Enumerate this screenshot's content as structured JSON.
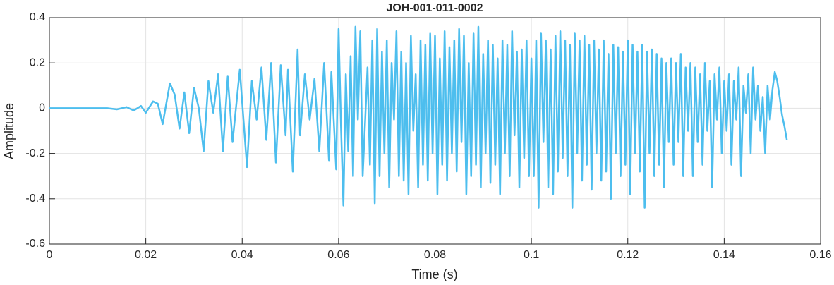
{
  "chart_data": {
    "type": "line",
    "title": "JOH-001-011-0002",
    "x_label": "Time (s)",
    "y_label": "Amplitude",
    "color": "#4dbeee",
    "grid": true,
    "xlim": [
      0,
      0.16
    ],
    "xticks": [
      0,
      0.02,
      0.04,
      0.06,
      0.08,
      0.1,
      0.12,
      0.14,
      0.16
    ],
    "ylim": [
      -0.6,
      0.4
    ],
    "yticks": [
      -0.6,
      -0.4,
      -0.2,
      0,
      0.2,
      0.4
    ],
    "x": [
      0,
      0.01,
      0.012,
      0.014,
      0.016,
      0.0175,
      0.019,
      0.02,
      0.0215,
      0.0225,
      0.0235,
      0.025,
      0.026,
      0.027,
      0.028,
      0.029,
      0.03,
      0.031,
      0.032,
      0.033,
      0.034,
      0.035,
      0.036,
      0.037,
      0.038,
      0.0395,
      0.041,
      0.042,
      0.043,
      0.044,
      0.045,
      0.046,
      0.047,
      0.048,
      0.049,
      0.0495,
      0.0505,
      0.0515,
      0.052,
      0.053,
      0.054,
      0.055,
      0.056,
      0.057,
      0.058,
      0.0585,
      0.0595,
      0.06,
      0.0605,
      0.061,
      0.0615,
      0.062,
      0.0625,
      0.063,
      0.0635,
      0.064,
      0.0645,
      0.065,
      0.066,
      0.0665,
      0.067,
      0.0675,
      0.068,
      0.0685,
      0.069,
      0.0695,
      0.07,
      0.0705,
      0.071,
      0.0715,
      0.072,
      0.0725,
      0.073,
      0.0735,
      0.074,
      0.0745,
      0.075,
      0.0755,
      0.076,
      0.0765,
      0.077,
      0.0775,
      0.078,
      0.0785,
      0.079,
      0.0795,
      0.08,
      0.0805,
      0.081,
      0.0815,
      0.082,
      0.0825,
      0.083,
      0.0835,
      0.084,
      0.0845,
      0.085,
      0.0855,
      0.086,
      0.0865,
      0.087,
      0.0875,
      0.088,
      0.0885,
      0.089,
      0.0895,
      0.09,
      0.0905,
      0.091,
      0.0915,
      0.092,
      0.0925,
      0.093,
      0.0935,
      0.094,
      0.0945,
      0.095,
      0.0955,
      0.096,
      0.0965,
      0.097,
      0.0975,
      0.098,
      0.0985,
      0.099,
      0.0995,
      0.1,
      0.1005,
      0.101,
      0.1015,
      0.102,
      0.1025,
      0.103,
      0.1035,
      0.104,
      0.1045,
      0.105,
      0.1055,
      0.106,
      0.1065,
      0.107,
      0.1075,
      0.108,
      0.1085,
      0.109,
      0.1095,
      0.11,
      0.1105,
      0.111,
      0.1115,
      0.112,
      0.1125,
      0.113,
      0.1135,
      0.114,
      0.1145,
      0.115,
      0.1155,
      0.116,
      0.1165,
      0.117,
      0.1175,
      0.118,
      0.1185,
      0.119,
      0.1195,
      0.12,
      0.1205,
      0.121,
      0.1215,
      0.122,
      0.1225,
      0.123,
      0.1235,
      0.124,
      0.1245,
      0.125,
      0.1255,
      0.126,
      0.1265,
      0.127,
      0.1275,
      0.128,
      0.1285,
      0.129,
      0.1295,
      0.13,
      0.1305,
      0.131,
      0.1315,
      0.132,
      0.1325,
      0.133,
      0.1335,
      0.134,
      0.1345,
      0.135,
      0.1355,
      0.136,
      0.1365,
      0.137,
      0.1375,
      0.138,
      0.1385,
      0.139,
      0.1395,
      0.14,
      0.1405,
      0.141,
      0.1415,
      0.142,
      0.1425,
      0.143,
      0.1435,
      0.144,
      0.1445,
      0.145,
      0.1455,
      0.146,
      0.1465,
      0.147,
      0.1475,
      0.148,
      0.1485,
      0.149,
      0.1495,
      0.15,
      0.1505,
      0.151,
      0.1515,
      0.152,
      0.1525,
      0.153
    ],
    "values": [
      0,
      0,
      0,
      -0.005,
      0.005,
      -0.01,
      0.01,
      -0.02,
      0.03,
      0.02,
      -0.07,
      0.11,
      0.06,
      -0.09,
      0.07,
      -0.11,
      0.09,
      0,
      -0.19,
      0.12,
      -0.02,
      0.15,
      -0.19,
      0.14,
      -0.15,
      0.17,
      -0.26,
      0.12,
      -0.05,
      0.18,
      -0.14,
      0.2,
      -0.24,
      0.19,
      -0.12,
      0.17,
      -0.28,
      0.26,
      -0.12,
      0.15,
      -0.05,
      0.13,
      -0.19,
      0.2,
      -0.23,
      0.16,
      -0.27,
      0.35,
      -0.08,
      -0.43,
      0.15,
      -0.19,
      0.23,
      -0.3,
      0.36,
      -0.05,
      0.34,
      -0.3,
      0.18,
      -0.25,
      0.3,
      -0.42,
      0.35,
      -0.3,
      0.25,
      -0.2,
      0.3,
      -0.35,
      0.2,
      -0.05,
      0.34,
      -0.3,
      0.25,
      -0.32,
      0.2,
      -0.38,
      0.32,
      -0.1,
      0.15,
      -0.35,
      0.3,
      -0.25,
      0.28,
      -0.32,
      0.33,
      -0.2,
      0.32,
      -0.38,
      0.22,
      -0.25,
      0.34,
      -0.32,
      0.27,
      -0.2,
      0.3,
      -0.28,
      0.35,
      -0.15,
      0.32,
      -0.38,
      0.2,
      -0.3,
      0.33,
      -0.25,
      0.36,
      -0.35,
      0.24,
      -0.2,
      0.3,
      -0.33,
      0.28,
      -0.25,
      0.22,
      -0.38,
      0.3,
      -0.2,
      0.28,
      -0.3,
      0.34,
      -0.12,
      0.25,
      -0.35,
      0.26,
      -0.22,
      0.3,
      -0.3,
      0.22,
      -0.3,
      0.3,
      -0.44,
      0.33,
      -0.15,
      0.3,
      -0.35,
      0.26,
      -0.38,
      0.32,
      -0.28,
      0.34,
      -0.22,
      0.3,
      -0.3,
      0.28,
      -0.44,
      0.33,
      -0.2,
      0.3,
      -0.32,
      0.32,
      -0.25,
      0.28,
      -0.36,
      0.3,
      -0.2,
      0.26,
      -0.32,
      0.3,
      -0.28,
      0.24,
      -0.4,
      0.28,
      -0.2,
      0.27,
      -0.3,
      0.25,
      -0.25,
      0.3,
      -0.38,
      0.28,
      -0.2,
      0.25,
      -0.28,
      0.28,
      -0.44,
      0.25,
      -0.2,
      0.26,
      -0.3,
      0.24,
      -0.25,
      0.22,
      -0.35,
      0.2,
      -0.15,
      0.22,
      -0.25,
      0.2,
      -0.15,
      0.24,
      -0.3,
      0.18,
      -0.1,
      0.2,
      -0.3,
      0.18,
      -0.15,
      0.15,
      -0.25,
      0.2,
      -0.1,
      0.12,
      -0.35,
      0.15,
      -0.05,
      0.18,
      -0.2,
      0.12,
      -0.1,
      0.15,
      -0.25,
      0.12,
      -0.05,
      0.18,
      -0.3,
      0.1,
      -0.02,
      0.15,
      -0.2,
      0.18,
      -0.05,
      0.1,
      -0.1,
      0.05,
      -0.2,
      0.1,
      -0.05,
      0.08,
      0.16,
      0.12,
      0.05,
      -0.03,
      -0.08,
      -0.14
    ]
  }
}
